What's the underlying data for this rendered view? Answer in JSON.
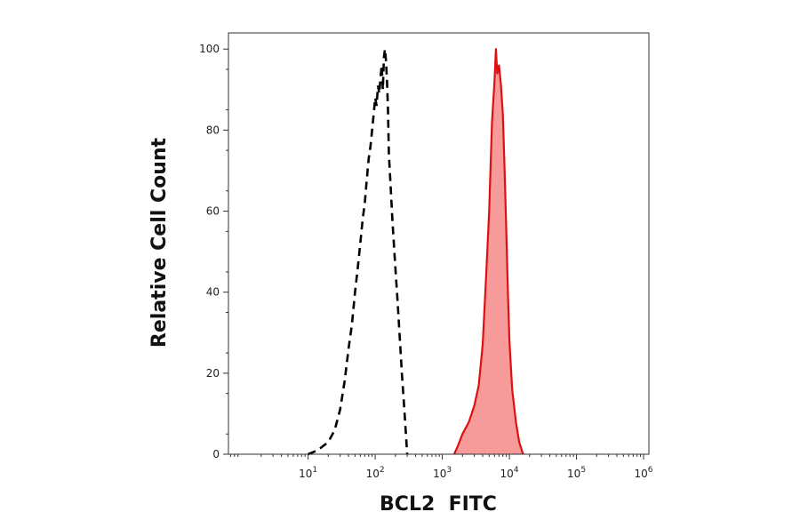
{
  "chart_data": {
    "type": "area",
    "title": "",
    "xlabel": "BCL2  FITC",
    "ylabel": "Relative Cell Count",
    "x_scale": "log",
    "xlim": [
      0.65,
      1200000
    ],
    "ylim": [
      0,
      104
    ],
    "x_ticks": [
      {
        "value": 10,
        "base": "10",
        "exp": "1"
      },
      {
        "value": 100,
        "base": "10",
        "exp": "2"
      },
      {
        "value": 1000,
        "base": "10",
        "exp": "3"
      },
      {
        "value": 10000,
        "base": "10",
        "exp": "4"
      },
      {
        "value": 100000,
        "base": "10",
        "exp": "5"
      },
      {
        "value": 1000000,
        "base": "10",
        "exp": "6"
      }
    ],
    "y_ticks": [
      0,
      20,
      40,
      60,
      80,
      100
    ],
    "series": [
      {
        "style": "dashed-outline",
        "color": "#000000",
        "points": [
          [
            10,
            0
          ],
          [
            14,
            1
          ],
          [
            20,
            3
          ],
          [
            25,
            6
          ],
          [
            30,
            11
          ],
          [
            35,
            18
          ],
          [
            40,
            26
          ],
          [
            45,
            32
          ],
          [
            50,
            40
          ],
          [
            55,
            46
          ],
          [
            60,
            52
          ],
          [
            65,
            58
          ],
          [
            70,
            62
          ],
          [
            75,
            68
          ],
          [
            80,
            73
          ],
          [
            85,
            76
          ],
          [
            90,
            80
          ],
          [
            95,
            84
          ],
          [
            100,
            88
          ],
          [
            105,
            86
          ],
          [
            110,
            91
          ],
          [
            115,
            89
          ],
          [
            120,
            93
          ],
          [
            125,
            96
          ],
          [
            130,
            90
          ],
          [
            135,
            98
          ],
          [
            140,
            100
          ],
          [
            145,
            97
          ],
          [
            150,
            92
          ],
          [
            155,
            85
          ],
          [
            160,
            74
          ],
          [
            170,
            66
          ],
          [
            180,
            58
          ],
          [
            190,
            52
          ],
          [
            200,
            46
          ],
          [
            215,
            38
          ],
          [
            230,
            30
          ],
          [
            250,
            20
          ],
          [
            270,
            12
          ],
          [
            300,
            0
          ]
        ]
      },
      {
        "style": "filled",
        "color": "#dd1111",
        "fill": "#f69a9a",
        "points": [
          [
            1500,
            0
          ],
          [
            1700,
            2
          ],
          [
            2000,
            5
          ],
          [
            2500,
            8
          ],
          [
            3000,
            12
          ],
          [
            3500,
            17
          ],
          [
            4000,
            27
          ],
          [
            4500,
            44
          ],
          [
            5000,
            60
          ],
          [
            5500,
            82
          ],
          [
            6000,
            92
          ],
          [
            6300,
            100
          ],
          [
            6600,
            94
          ],
          [
            7000,
            96
          ],
          [
            7500,
            91
          ],
          [
            8000,
            84
          ],
          [
            8500,
            70
          ],
          [
            9000,
            55
          ],
          [
            9500,
            40
          ],
          [
            10000,
            28
          ],
          [
            11000,
            16
          ],
          [
            12500,
            8
          ],
          [
            14000,
            3
          ],
          [
            16000,
            0
          ]
        ]
      }
    ],
    "grid": false,
    "legend": "none"
  }
}
